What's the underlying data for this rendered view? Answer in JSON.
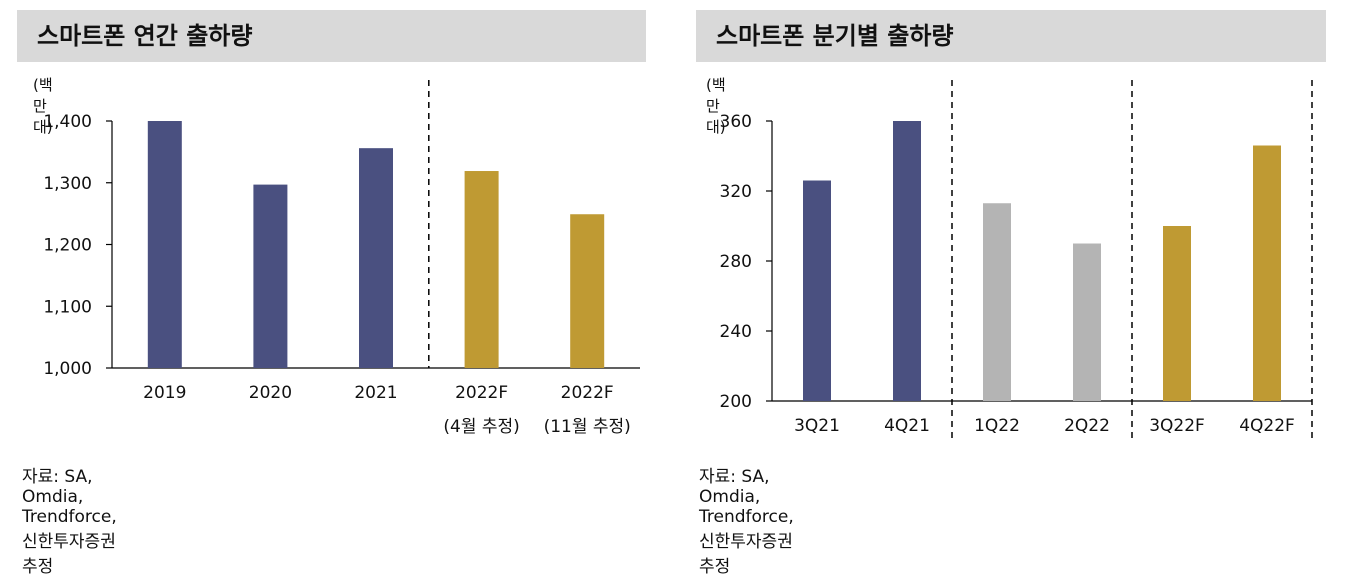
{
  "left": {
    "title": "스마트폰 연간 출하량",
    "unit": "(백만대)",
    "source": "자료: SA, Omdia, Trendforce, 신한투자증권 추정"
  },
  "right": {
    "title": "스마트폰 분기별 출하량",
    "unit": "(백만대)",
    "source": "자료: SA, Omdia, Trendforce, 신한투자증권 추정"
  },
  "colors": {
    "navy": "#4a5080",
    "gold": "#bf9a33",
    "gray": "#b4b4b4"
  },
  "chart_data": [
    {
      "type": "bar",
      "title": "스마트폰 연간 출하량",
      "ylabel": "(백만대)",
      "ylim": [
        1000,
        1400
      ],
      "yticks": [
        1000,
        1100,
        1200,
        1300,
        1400
      ],
      "ytick_labels": [
        "1,000",
        "1,100",
        "1,200",
        "1,300",
        "1,400"
      ],
      "categories": [
        "2019",
        "2020",
        "2021",
        "2022F",
        "2022F"
      ],
      "sublabels": [
        "",
        "",
        "",
        "(4월 추정)",
        "(11월 추정)"
      ],
      "values": [
        1400,
        1297,
        1356,
        1319,
        1249
      ],
      "color_keys": [
        "navy",
        "navy",
        "navy",
        "gold",
        "gold"
      ],
      "dividers_after": [
        2
      ]
    },
    {
      "type": "bar",
      "title": "스마트폰 분기별 출하량",
      "ylabel": "(백만대)",
      "ylim": [
        200,
        360
      ],
      "yticks": [
        200,
        240,
        280,
        320,
        360
      ],
      "ytick_labels": [
        "200",
        "240",
        "280",
        "320",
        "360"
      ],
      "categories": [
        "3Q21",
        "4Q21",
        "1Q22",
        "2Q22",
        "3Q22F",
        "4Q22F"
      ],
      "values": [
        326,
        360,
        313,
        290,
        300,
        346
      ],
      "color_keys": [
        "navy",
        "navy",
        "gray",
        "gray",
        "gold",
        "gold"
      ],
      "dividers_after": [
        1,
        3,
        5
      ]
    }
  ]
}
